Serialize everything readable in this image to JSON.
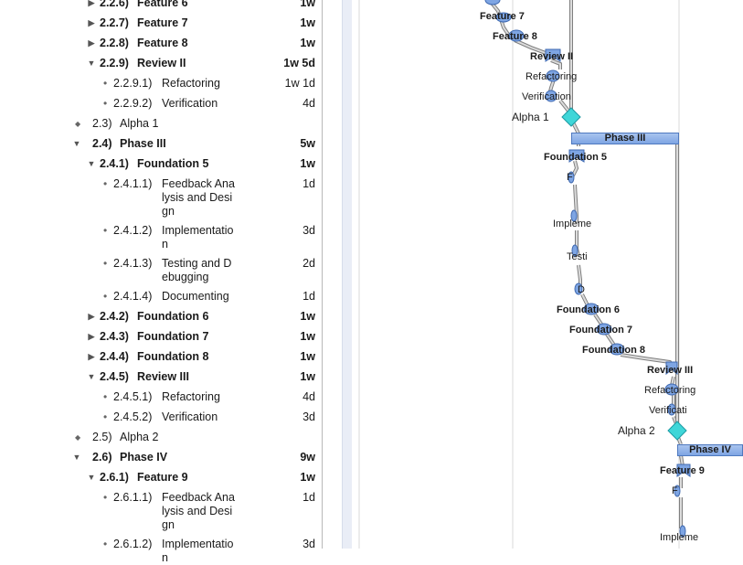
{
  "outline": {
    "rows": [
      {
        "num": "2.2.6)",
        "name": "Feature 6",
        "dur": "1w",
        "level": 2,
        "expander": "collapsed",
        "bold": true
      },
      {
        "num": "2.2.7)",
        "name": "Feature 7",
        "dur": "1w",
        "level": 2,
        "expander": "collapsed",
        "bold": true
      },
      {
        "num": "2.2.8)",
        "name": "Feature 8",
        "dur": "1w",
        "level": 2,
        "expander": "collapsed",
        "bold": true
      },
      {
        "num": "2.2.9)",
        "name": "Review II",
        "dur": "1w 5d",
        "level": 2,
        "expander": "expanded",
        "bold": true
      },
      {
        "num": "2.2.9.1)",
        "name": "Refactoring",
        "dur": "1w 1d",
        "level": 3,
        "expander": "bullet",
        "bold": false
      },
      {
        "num": "2.2.9.2)",
        "name": "Verification",
        "dur": "4d",
        "level": 3,
        "expander": "bullet",
        "bold": false
      },
      {
        "num": "2.3)",
        "name": "Alpha 1",
        "dur": "",
        "level": 1,
        "expander": "milestone",
        "bold": false
      },
      {
        "num": "2.4)",
        "name": "Phase III",
        "dur": "5w",
        "level": 1,
        "expander": "expanded",
        "bold": true
      },
      {
        "num": "2.4.1)",
        "name": "Foundation 5",
        "dur": "1w",
        "level": 2,
        "expander": "expanded",
        "bold": true
      },
      {
        "num": "2.4.1.1)",
        "name": "Feedback Analysis and Design",
        "dur": "1d",
        "level": 3,
        "expander": "bullet",
        "bold": false
      },
      {
        "num": "2.4.1.2)",
        "name": "Implementation",
        "dur": "3d",
        "level": 3,
        "expander": "bullet",
        "bold": false
      },
      {
        "num": "2.4.1.3)",
        "name": "Testing and Debugging",
        "dur": "2d",
        "level": 3,
        "expander": "bullet",
        "bold": false
      },
      {
        "num": "2.4.1.4)",
        "name": "Documenting",
        "dur": "1d",
        "level": 3,
        "expander": "bullet",
        "bold": false
      },
      {
        "num": "2.4.2)",
        "name": "Foundation 6",
        "dur": "1w",
        "level": 2,
        "expander": "collapsed",
        "bold": true
      },
      {
        "num": "2.4.3)",
        "name": "Foundation 7",
        "dur": "1w",
        "level": 2,
        "expander": "collapsed",
        "bold": true
      },
      {
        "num": "2.4.4)",
        "name": "Foundation 8",
        "dur": "1w",
        "level": 2,
        "expander": "collapsed",
        "bold": true
      },
      {
        "num": "2.4.5)",
        "name": "Review III",
        "dur": "1w",
        "level": 2,
        "expander": "expanded",
        "bold": true
      },
      {
        "num": "2.4.5.1)",
        "name": "Refactoring",
        "dur": "4d",
        "level": 3,
        "expander": "bullet",
        "bold": false
      },
      {
        "num": "2.4.5.2)",
        "name": "Verification",
        "dur": "3d",
        "level": 3,
        "expander": "bullet",
        "bold": false
      },
      {
        "num": "2.5)",
        "name": "Alpha 2",
        "dur": "",
        "level": 1,
        "expander": "milestone",
        "bold": false
      },
      {
        "num": "2.6)",
        "name": "Phase IV",
        "dur": "9w",
        "level": 1,
        "expander": "expanded",
        "bold": true
      },
      {
        "num": "2.6.1)",
        "name": "Feature 9",
        "dur": "1w",
        "level": 2,
        "expander": "expanded",
        "bold": true
      },
      {
        "num": "2.6.1.1)",
        "name": "Feedback Analysis and Design",
        "dur": "1d",
        "level": 3,
        "expander": "bullet",
        "bold": false
      },
      {
        "num": "2.6.1.2)",
        "name": "Implementation",
        "dur": "3d",
        "level": 3,
        "expander": "bullet",
        "bold": false
      }
    ]
  },
  "gantt": {
    "labels": [
      {
        "text": "Feature 7",
        "bold": true
      },
      {
        "text": "Feature 8",
        "bold": true
      },
      {
        "text": "Review II",
        "bold": true
      },
      {
        "text": "Refactoring",
        "bold": false
      },
      {
        "text": "Verification",
        "bold": false
      },
      {
        "text": "Alpha 1",
        "bold": false,
        "milestone": true
      },
      {
        "text": "Foundation 5",
        "bold": true
      },
      {
        "text": "F",
        "bold": false
      },
      {
        "text": "Impleme",
        "bold": false
      },
      {
        "text": "Testi",
        "bold": false
      },
      {
        "text": "D",
        "bold": false
      },
      {
        "text": "Foundation 6",
        "bold": true
      },
      {
        "text": "Foundation 7",
        "bold": true
      },
      {
        "text": "Foundation 8",
        "bold": true
      },
      {
        "text": "Review III",
        "bold": true
      },
      {
        "text": "Refactoring",
        "bold": false
      },
      {
        "text": "Verificati",
        "bold": false
      },
      {
        "text": "Alpha 2",
        "bold": false,
        "milestone": true
      },
      {
        "text": "Feature 9",
        "bold": true
      },
      {
        "text": "F",
        "bold": false
      },
      {
        "text": "Impleme",
        "bold": false
      }
    ],
    "phase_banners": [
      {
        "text": "Phase III"
      },
      {
        "text": "Phase IV"
      }
    ],
    "colors": {
      "task": "#7ea5e3",
      "task_border": "#3f69b0",
      "milestone": "#3fd6d8",
      "grid": "#d8d8d8"
    }
  }
}
